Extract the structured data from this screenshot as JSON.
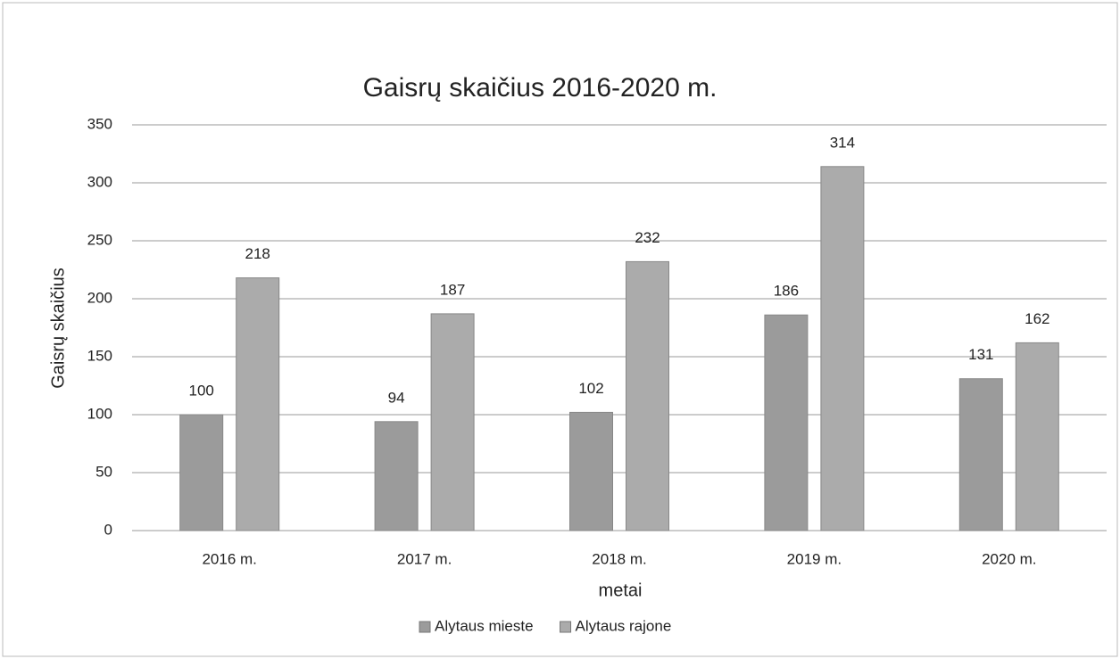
{
  "chart_data": {
    "type": "bar",
    "title": "Gaisrų skaičius 2016-2020 m.",
    "x_label": "metai",
    "y_label": "Gaisrų skaičius",
    "categories": [
      "2016 m.",
      "2017 m.",
      "2018 m.",
      "2019 m.",
      "2020 m."
    ],
    "series": [
      {
        "name": "Alytaus mieste",
        "color": "#9b9b9b",
        "values": [
          100,
          94,
          102,
          186,
          131
        ]
      },
      {
        "name": "Alytaus rajone",
        "color": "#ababab",
        "values": [
          218,
          187,
          232,
          314,
          162
        ]
      }
    ],
    "ylim": [
      0,
      350
    ],
    "yticks": [
      0,
      50,
      100,
      150,
      200,
      250,
      300,
      350
    ],
    "grid": true,
    "legend": "bottom"
  }
}
